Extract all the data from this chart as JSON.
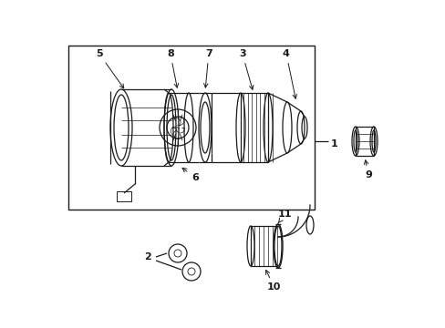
{
  "bg_color": "#ffffff",
  "fig_bg": "#ffffff",
  "line_color": "#1a1a1a",
  "label_color": "#000000",
  "lw": 0.9
}
